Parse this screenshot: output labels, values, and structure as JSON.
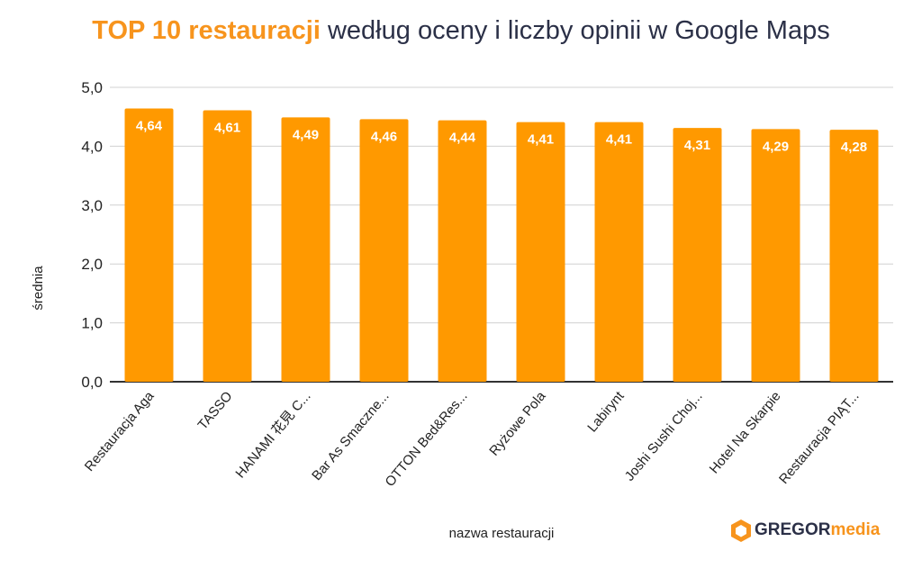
{
  "chart_data": {
    "type": "bar",
    "title_highlight": "TOP 10 restauracji",
    "title_rest": "według oceny i liczby opinii w Google Maps",
    "xlabel": "nazwa restauracji",
    "ylabel": "średnia",
    "ylim": [
      0,
      5
    ],
    "yticks": [
      "0,0",
      "1,0",
      "2,0",
      "3,0",
      "4,0",
      "5,0"
    ],
    "grid": true,
    "categories": [
      "Restauracja Aga",
      "TASSO",
      "HANAMI 花見 C...",
      "Bar As Smaczne...",
      "OTTON Bed&Res...",
      "Ryżowe Pola",
      "Labirynt",
      "Joshi Sushi Choj...",
      "Hotel Na Skarpie",
      "Restauracja PIĄT..."
    ],
    "values": [
      4.64,
      4.61,
      4.49,
      4.46,
      4.44,
      4.41,
      4.41,
      4.31,
      4.29,
      4.28
    ],
    "data_labels": [
      "4,64",
      "4,61",
      "4,49",
      "4,46",
      "4,44",
      "4,41",
      "4,41",
      "4,31",
      "4,29",
      "4,28"
    ],
    "bar_color": "#ff9900"
  },
  "logo": {
    "part1": "GREGOR",
    "part2": "media",
    "color1": "#2b3047",
    "color2": "#f7941d"
  }
}
